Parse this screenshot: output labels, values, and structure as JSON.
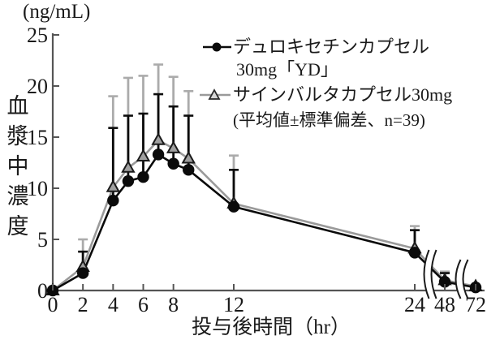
{
  "chart": {
    "unit_label": "(ng/mL)",
    "ylabel": "血漿中濃度",
    "xlabel": "投与後時間（hr）",
    "legend": {
      "series1_line1": "デュロキセチンカプセル",
      "series1_line2": "30mg「YD」",
      "series2_line1": "サインバルタカプセル30mg",
      "note": "(平均値±標準偏差、n=39)"
    },
    "colors": {
      "series1": "#0b0b0b",
      "series2_line": "#9a9a9a",
      "series2_marker_fill": "#a0a0a0",
      "error_bar_gray": "#ababab",
      "axis": "#555555"
    }
  },
  "chart_data": {
    "type": "line",
    "title": "",
    "xlabel": "投与後時間（hr）",
    "ylabel": "血漿中濃度 (ng/mL)",
    "x": [
      0,
      2,
      4,
      5,
      6,
      7,
      8,
      9,
      12,
      24,
      48,
      72
    ],
    "x_ticks": [
      0,
      2,
      4,
      6,
      8,
      12,
      24,
      48,
      72
    ],
    "y_ticks": [
      0,
      5,
      10,
      15,
      20,
      25
    ],
    "ylim": [
      0,
      25
    ],
    "axis_breaks_between": [
      [
        24,
        48
      ],
      [
        48,
        72
      ]
    ],
    "note": "平均値±標準偏差、n=39",
    "series": [
      {
        "name": "デュロキセチンカプセル30mg「YD」",
        "marker": "circle",
        "color": "#0b0b0b",
        "values": [
          0,
          1.7,
          8.8,
          10.7,
          11.1,
          13.3,
          12.4,
          11.8,
          8.2,
          3.7,
          0.85,
          0.3
        ],
        "sd_upper": [
          null,
          3.8,
          15.9,
          17.1,
          17.3,
          19.2,
          18.0,
          17.1,
          11.8,
          5.9,
          1.7,
          null
        ]
      },
      {
        "name": "サインバルタカプセル30mg",
        "marker": "triangle",
        "color": "#9a9a9a",
        "values": [
          0,
          2.3,
          10.1,
          12.0,
          13.1,
          14.7,
          13.9,
          12.9,
          8.5,
          4.1,
          1.0,
          0.4
        ],
        "sd_upper": [
          null,
          5.0,
          19.0,
          20.8,
          21.0,
          22.1,
          20.9,
          19.5,
          13.2,
          6.3,
          1.85,
          null
        ]
      }
    ]
  }
}
